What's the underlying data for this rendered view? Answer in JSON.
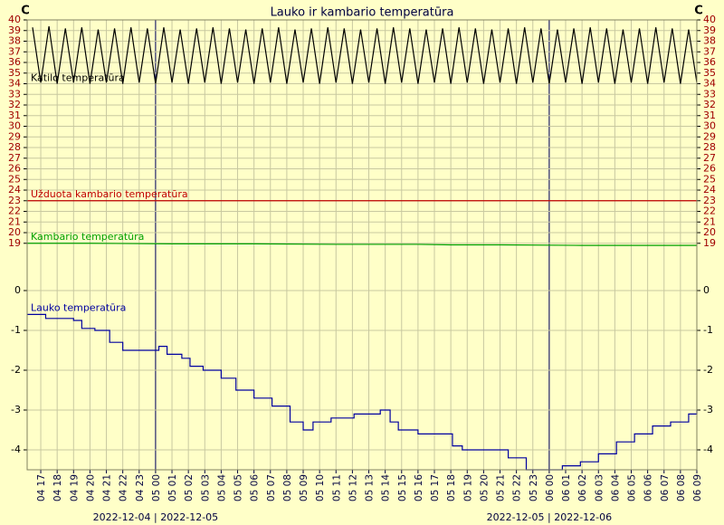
{
  "title": "Lauko ir kambario temperatūra",
  "y_unit": "C",
  "x_axis": {
    "xlim": [
      16.17,
      57
    ],
    "xticks": [
      {
        "value": 17,
        "label": "04 17"
      },
      {
        "value": 18,
        "label": "04 18"
      },
      {
        "value": 19,
        "label": "04 19"
      },
      {
        "value": 20,
        "label": "04 20"
      },
      {
        "value": 21,
        "label": "04 21"
      },
      {
        "value": 22,
        "label": "04 22"
      },
      {
        "value": 23,
        "label": "04 23"
      },
      {
        "value": 24,
        "label": "05 00"
      },
      {
        "value": 25,
        "label": "05 01"
      },
      {
        "value": 26,
        "label": "05 02"
      },
      {
        "value": 27,
        "label": "05 03"
      },
      {
        "value": 28,
        "label": "05 04"
      },
      {
        "value": 29,
        "label": "05 05"
      },
      {
        "value": 30,
        "label": "05 06"
      },
      {
        "value": 31,
        "label": "05 07"
      },
      {
        "value": 32,
        "label": "05 08"
      },
      {
        "value": 33,
        "label": "05 09"
      },
      {
        "value": 34,
        "label": "05 10"
      },
      {
        "value": 35,
        "label": "05 11"
      },
      {
        "value": 36,
        "label": "05 12"
      },
      {
        "value": 37,
        "label": "05 13"
      },
      {
        "value": 38,
        "label": "05 14"
      },
      {
        "value": 39,
        "label": "05 15"
      },
      {
        "value": 40,
        "label": "05 16"
      },
      {
        "value": 41,
        "label": "05 17"
      },
      {
        "value": 42,
        "label": "05 18"
      },
      {
        "value": 43,
        "label": "05 19"
      },
      {
        "value": 44,
        "label": "05 20"
      },
      {
        "value": 45,
        "label": "05 21"
      },
      {
        "value": 46,
        "label": "05 22"
      },
      {
        "value": 47,
        "label": "05 23"
      },
      {
        "value": 48,
        "label": "06 00"
      },
      {
        "value": 49,
        "label": "06 01"
      },
      {
        "value": 50,
        "label": "06 02"
      },
      {
        "value": 51,
        "label": "06 03"
      },
      {
        "value": 52,
        "label": "06 04"
      },
      {
        "value": 53,
        "label": "06 05"
      },
      {
        "value": 54,
        "label": "06 06"
      },
      {
        "value": 55,
        "label": "06 07"
      },
      {
        "value": 56,
        "label": "06 08"
      },
      {
        "value": 57,
        "label": "06 09"
      }
    ],
    "day_markers": [
      {
        "value": 24,
        "label": "2022-12-04 | 2022-12-05"
      },
      {
        "value": 48,
        "label": "2022-12-05 | 2022-12-06"
      }
    ]
  },
  "chart_data": [
    {
      "type": "line",
      "ylim": [
        18.3,
        40
      ],
      "tick_color": "#a00000",
      "yticks": [
        19,
        20,
        21,
        22,
        23,
        24,
        25,
        26,
        27,
        28,
        29,
        30,
        31,
        32,
        33,
        34,
        35,
        36,
        37,
        38,
        39,
        40
      ],
      "series": [
        {
          "name": "Katilo temperatūra",
          "color": "#000000",
          "x": [
            16.5,
            17,
            17.5,
            18,
            18.5,
            19,
            19.5,
            20,
            20.5,
            21,
            21.5,
            22,
            22.5,
            23,
            23.5,
            24,
            24.5,
            25,
            25.5,
            26,
            26.5,
            27,
            27.5,
            28,
            28.5,
            29,
            29.5,
            30,
            30.5,
            31,
            31.5,
            32,
            32.5,
            33,
            33.5,
            34,
            34.5,
            35,
            35.5,
            36,
            36.5,
            37,
            37.5,
            38,
            38.5,
            39,
            39.5,
            40,
            40.5,
            41,
            41.5,
            42,
            42.5,
            43,
            43.5,
            44,
            44.5,
            45,
            45.5,
            46,
            46.5,
            47,
            47.5,
            48,
            48.5,
            49,
            49.5,
            50,
            50.5,
            51,
            51.5,
            52,
            52.5,
            53,
            53.5,
            54,
            54.5,
            55,
            55.5,
            56,
            56.5,
            57
          ],
          "values": [
            39.3,
            34.1,
            39.4,
            34.0,
            39.2,
            34.1,
            39.3,
            34.0,
            39.1,
            34.1,
            39.2,
            34.0,
            39.3,
            34.1,
            39.2,
            34.0,
            39.3,
            34.1,
            39.1,
            34.0,
            39.2,
            34.1,
            39.3,
            34.0,
            39.2,
            34.1,
            39.1,
            34.0,
            39.2,
            34.1,
            39.3,
            34.0,
            39.1,
            34.1,
            39.2,
            34.0,
            39.3,
            34.1,
            39.2,
            34.0,
            39.1,
            34.1,
            39.2,
            34.0,
            39.3,
            34.1,
            39.2,
            34.0,
            39.1,
            34.1,
            39.2,
            34.0,
            39.3,
            34.1,
            39.2,
            34.0,
            39.1,
            34.1,
            39.2,
            34.0,
            39.3,
            34.1,
            39.2,
            34.0,
            39.1,
            34.1,
            39.2,
            34.0,
            39.3,
            34.1,
            39.2,
            34.0,
            39.1,
            34.1,
            39.2,
            34.0,
            39.3,
            34.1,
            39.2,
            34.0,
            39.1,
            34.1
          ]
        },
        {
          "name": "Užduota kambario temperatūra",
          "color": "#c00000",
          "x": [
            16.17,
            57
          ],
          "values": [
            23,
            23
          ]
        },
        {
          "name": "Kambario temperatūra",
          "color": "#00a000",
          "x": [
            16.17,
            20,
            25,
            30,
            35,
            40,
            42,
            45,
            50,
            55,
            57
          ],
          "values": [
            19.0,
            19.0,
            18.95,
            18.95,
            18.9,
            18.9,
            18.85,
            18.85,
            18.8,
            18.8,
            18.8
          ]
        }
      ]
    },
    {
      "type": "step",
      "ylim": [
        -4.5,
        0.5
      ],
      "tick_color": "#000000",
      "yticks": [
        0,
        -1,
        -2,
        -3,
        -4
      ],
      "series": [
        {
          "name": "Lauko temperatūra",
          "color": "#0000a0",
          "x": [
            16.17,
            17.3,
            19.0,
            19.5,
            20.3,
            21.2,
            22.0,
            24.2,
            24.7,
            25.6,
            26.1,
            26.9,
            28.0,
            28.9,
            30.0,
            31.1,
            32.2,
            33.0,
            33.6,
            34.7,
            36.1,
            37.7,
            38.3,
            38.8,
            40.0,
            41.6,
            42.1,
            42.7,
            44.3,
            45.5,
            46.6,
            47.7,
            48.8,
            49.9,
            51.0,
            52.1,
            53.2,
            54.3,
            55.4,
            56.5,
            57
          ],
          "values": [
            -0.6,
            -0.7,
            -0.75,
            -0.95,
            -1.0,
            -1.3,
            -1.5,
            -1.4,
            -1.6,
            -1.7,
            -1.9,
            -2.0,
            -2.2,
            -2.5,
            -2.7,
            -2.9,
            -3.3,
            -3.5,
            -3.3,
            -3.2,
            -3.1,
            -3.0,
            -3.3,
            -3.5,
            -3.6,
            -3.6,
            -3.9,
            -4.0,
            -4.0,
            -4.2,
            -4.5,
            -4.5,
            -4.4,
            -4.3,
            -4.1,
            -3.8,
            -3.6,
            -3.4,
            -3.3,
            -3.1,
            -3.0
          ]
        }
      ]
    }
  ]
}
